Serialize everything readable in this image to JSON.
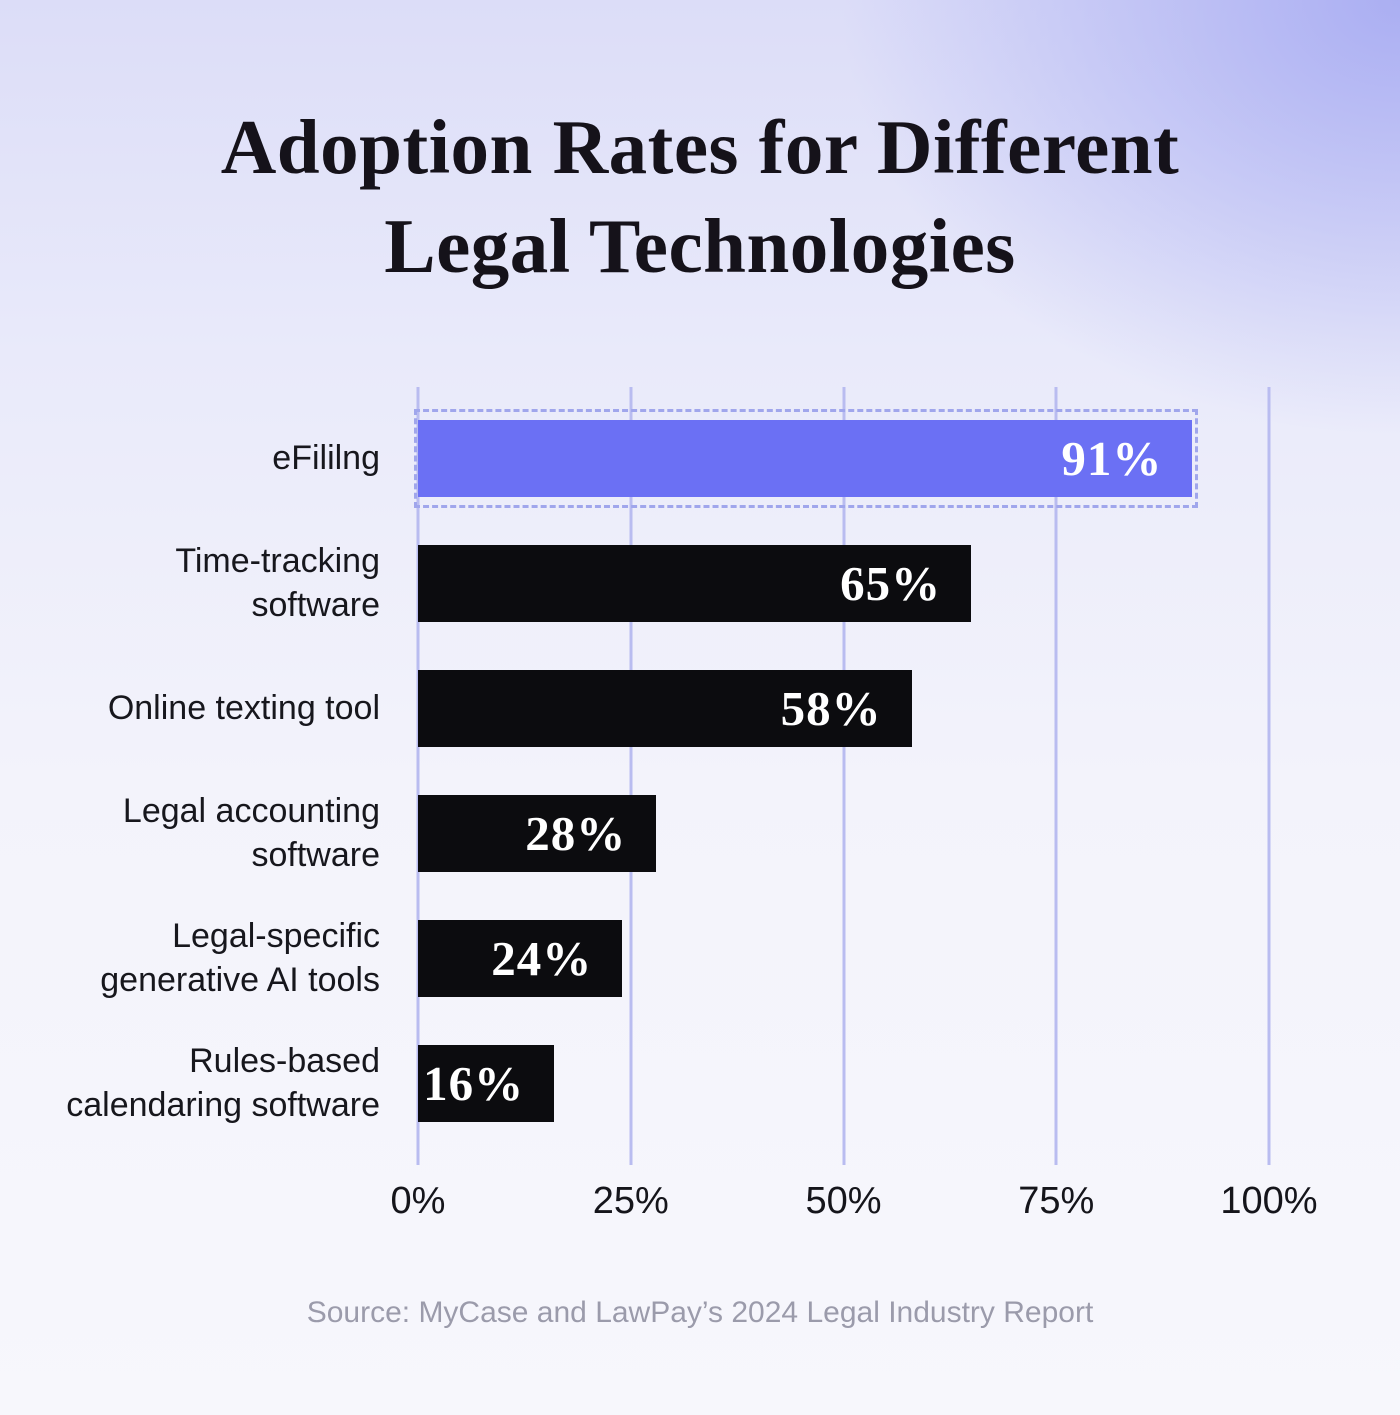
{
  "title": {
    "line1": "Adoption Rates for Different",
    "line2": "Legal Technologies"
  },
  "source": "Source: MyCase and LawPay’s 2024 Legal Industry Report",
  "chart_data": {
    "type": "bar",
    "orientation": "horizontal",
    "title": "Adoption Rates for Different Legal Technologies",
    "categories": [
      "eFililng",
      "Time-tracking\nsoftware",
      "Online texting tool",
      "Legal accounting\nsoftware",
      "Legal-specific\ngenerative AI tools",
      "Rules-based\ncalendaring software"
    ],
    "values": [
      91,
      65,
      58,
      28,
      24,
      16
    ],
    "value_labels": [
      "91%",
      "65%",
      "58%",
      "28%",
      "24%",
      "16%"
    ],
    "x_ticks": [
      "0%",
      "25%",
      "50%",
      "75%",
      "100%"
    ],
    "xlim": [
      0,
      100
    ],
    "grid": "vertical",
    "legend": "none",
    "highlight_index": 0,
    "colors": {
      "highlight_bar": "#6b70f4",
      "default_bar": "#0c0c0f",
      "value_text": "#ffffff",
      "gridline": "#b9bcf0",
      "highlight_dash": "#a0a6ec",
      "label_text": "#17171d",
      "source_text": "#9b9bab"
    }
  }
}
